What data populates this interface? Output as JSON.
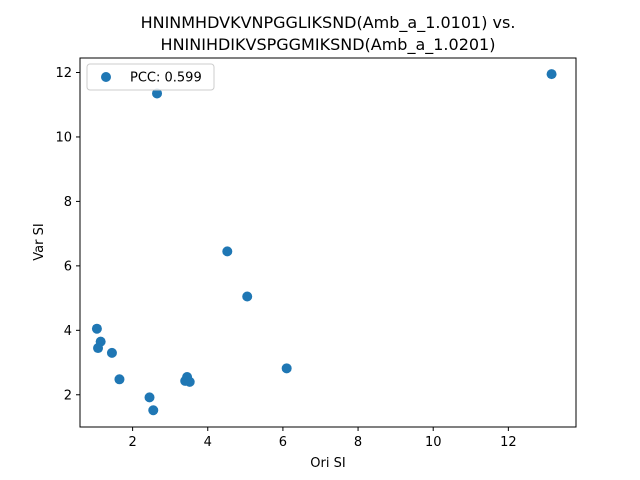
{
  "chart_data": {
    "type": "scatter",
    "title_lines": [
      "HNINMHDVKVNPGGLIKSND(Amb_a_1.0101) vs.",
      "HNINIHDIKVSPGGMIKSND(Amb_a_1.0201)"
    ],
    "xlabel": "Ori SI",
    "ylabel": "Var SI",
    "xlim": [
      0.6,
      13.8
    ],
    "ylim": [
      1.0,
      12.45
    ],
    "xticks": [
      2,
      4,
      6,
      8,
      10,
      12
    ],
    "yticks": [
      2,
      4,
      6,
      8,
      10,
      12
    ],
    "grid": false,
    "legend": {
      "position": "top-left",
      "label": "PCC: 0.599"
    },
    "marker_color": "#1f77b4",
    "series": [
      {
        "x": [
          13.15,
          2.65,
          4.52,
          5.05,
          1.05,
          1.15,
          1.08,
          1.45,
          6.1,
          1.65,
          3.45,
          3.4,
          3.52,
          2.45,
          2.55
        ],
        "y": [
          11.95,
          11.35,
          6.45,
          5.05,
          4.05,
          3.65,
          3.45,
          3.3,
          2.82,
          2.48,
          2.55,
          2.43,
          2.4,
          1.92,
          1.52
        ]
      }
    ]
  }
}
